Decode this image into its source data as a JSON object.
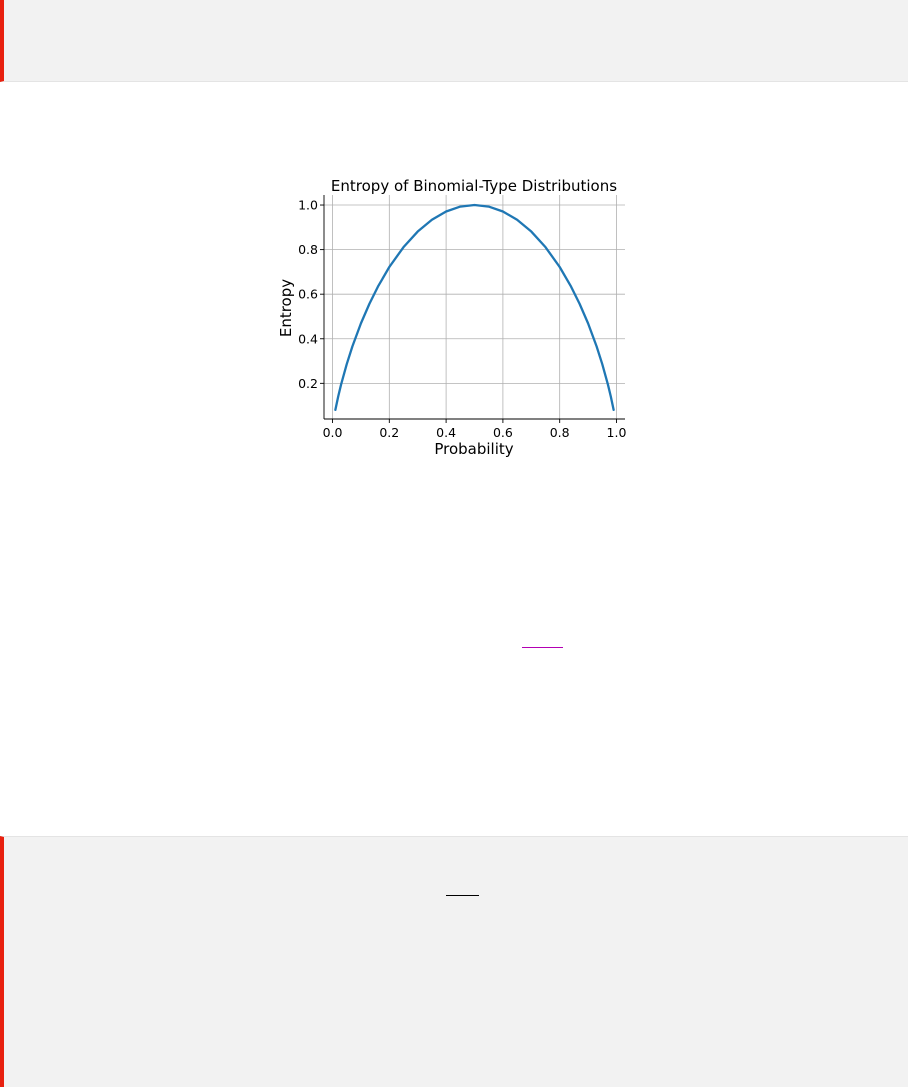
{
  "chart_data": {
    "type": "line",
    "title": "Entropy of Binomial-Type Distributions",
    "xlabel": "Probability",
    "ylabel": "Entropy",
    "xlim": [
      -0.03,
      1.03
    ],
    "ylim": [
      0.04,
      1.045
    ],
    "xticks": [
      0.0,
      0.2,
      0.4,
      0.6,
      0.8,
      1.0
    ],
    "xtick_labels": [
      "0.0",
      "0.2",
      "0.4",
      "0.6",
      "0.8",
      "1.0"
    ],
    "yticks": [
      0.2,
      0.4,
      0.6,
      0.8,
      1.0
    ],
    "ytick_labels": [
      "0.2",
      "0.4",
      "0.6",
      "0.8",
      "1.0"
    ],
    "grid": true,
    "series": [
      {
        "color": "#1f77b4",
        "x": [
          0.01,
          0.02,
          0.03,
          0.05,
          0.07,
          0.1,
          0.13,
          0.16,
          0.2,
          0.25,
          0.3,
          0.35,
          0.4,
          0.45,
          0.5,
          0.55,
          0.6,
          0.65,
          0.7,
          0.75,
          0.8,
          0.84,
          0.87,
          0.9,
          0.93,
          0.95,
          0.97,
          0.98,
          0.99
        ],
        "y": [
          0.081,
          0.141,
          0.194,
          0.286,
          0.366,
          0.469,
          0.557,
          0.634,
          0.722,
          0.811,
          0.881,
          0.934,
          0.971,
          0.993,
          1.0,
          0.993,
          0.971,
          0.934,
          0.881,
          0.811,
          0.722,
          0.634,
          0.557,
          0.469,
          0.366,
          0.286,
          0.194,
          0.141,
          0.081
        ]
      }
    ]
  }
}
